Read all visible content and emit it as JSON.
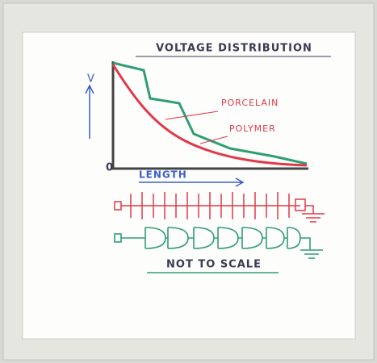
{
  "header": {
    "title": "VOLTAGE DISTRIBUTION"
  },
  "axes": {
    "y_label": "V",
    "origin": "0",
    "x_label": "LENGTH"
  },
  "legend": {
    "porcelain": "PORCELAIN",
    "polymer": "POLYMER"
  },
  "note": "NOT TO SCALE"
}
